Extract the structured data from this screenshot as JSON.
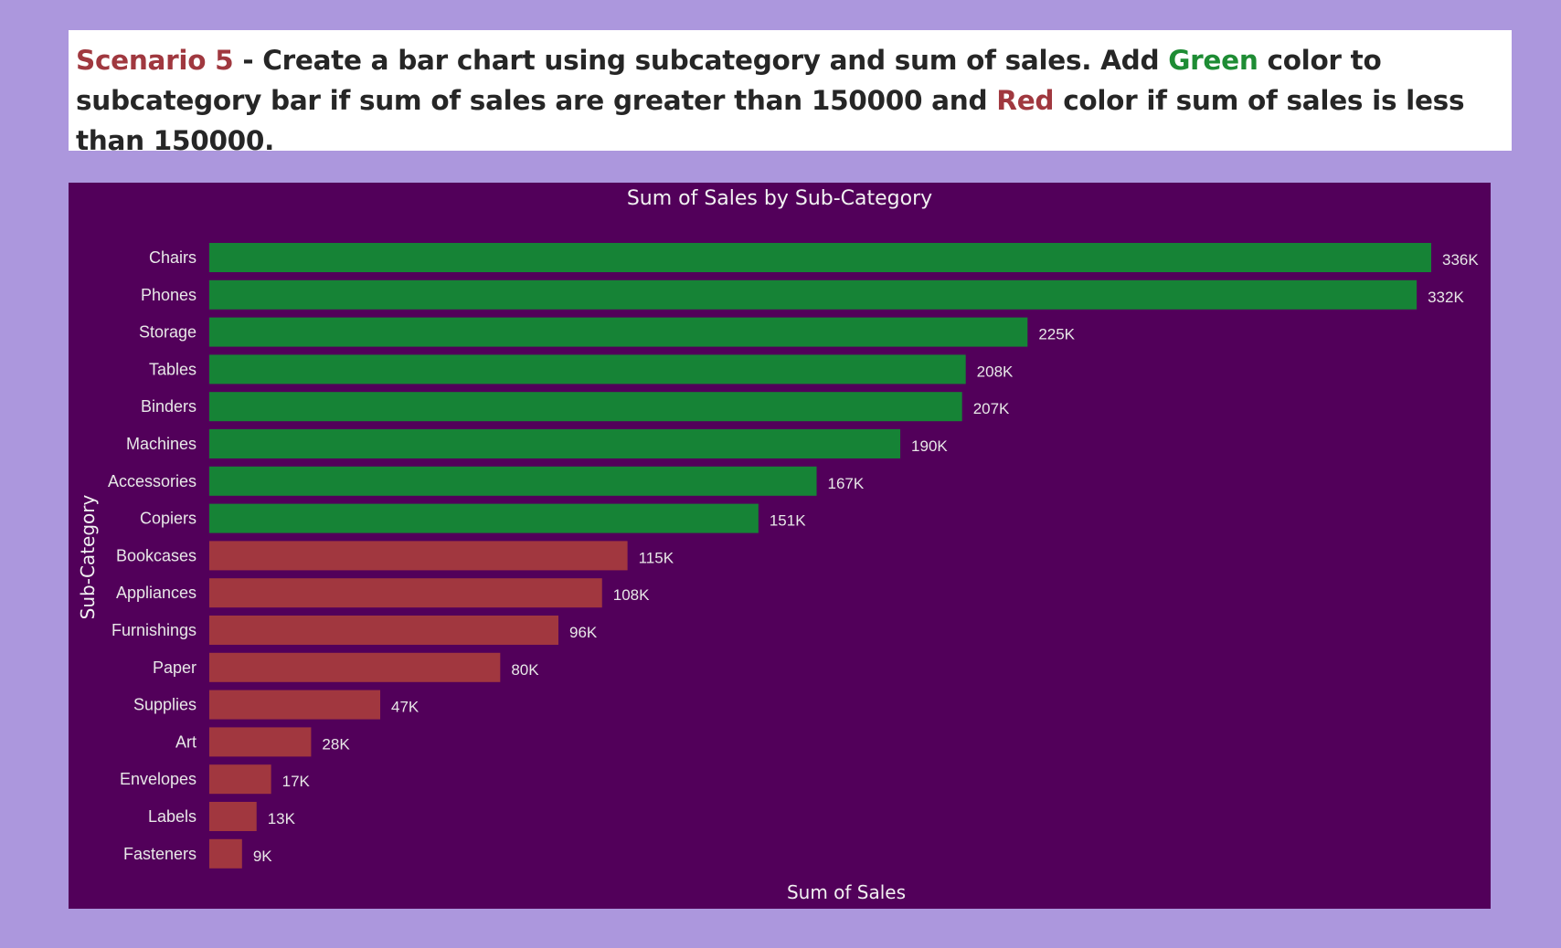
{
  "instruction": {
    "scenario_label": "Scenario 5",
    "text_part1": " - Create a bar chart using subcategory and sum of sales. Add ",
    "green_word": "Green",
    "text_part2": " color to subcategory bar if sum of sales are greater than 150000 and ",
    "red_word": "Red",
    "text_part3": " color if sum of sales is less than 150000.",
    "colors": {
      "scenario": "#a0383f",
      "green": "#1e8c34",
      "red": "#a0383f",
      "text": "#262626"
    }
  },
  "chart_data": {
    "type": "bar",
    "orientation": "horizontal",
    "title": "Sum of Sales by Sub-Category",
    "xlabel": "Sum of Sales",
    "ylabel": "Sub-Category",
    "categories": [
      "Chairs",
      "Phones",
      "Storage",
      "Tables",
      "Binders",
      "Machines",
      "Accessories",
      "Copiers",
      "Bookcases",
      "Appliances",
      "Furnishings",
      "Paper",
      "Supplies",
      "Art",
      "Envelopes",
      "Labels",
      "Fasteners"
    ],
    "values": [
      336000,
      332000,
      225000,
      208000,
      207000,
      190000,
      167000,
      151000,
      115000,
      108000,
      96000,
      80000,
      47000,
      28000,
      17000,
      13000,
      9000
    ],
    "data_labels": [
      "336K",
      "332K",
      "225K",
      "208K",
      "207K",
      "190K",
      "167K",
      "151K",
      "115K",
      "108K",
      "96K",
      "80K",
      "47K",
      "28K",
      "17K",
      "13K",
      "9K"
    ],
    "xlim": [
      0,
      336000
    ],
    "threshold": 150000,
    "colors": {
      "above_threshold": "#168336",
      "below_threshold": "#a1373f",
      "background": "#52005a",
      "text": "#f2f2f2"
    },
    "grid": false,
    "legend": "none"
  }
}
